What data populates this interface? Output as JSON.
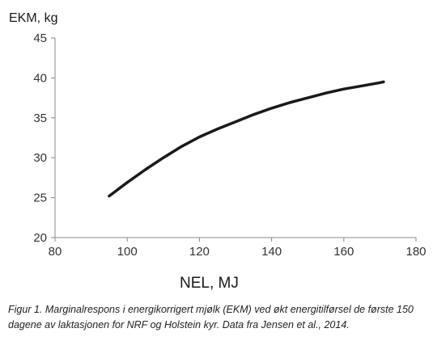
{
  "chart_data": {
    "type": "line",
    "ylabel": "EKM, kg",
    "xlabel": "NEL, MJ",
    "xlim": [
      80,
      180
    ],
    "ylim": [
      20,
      45
    ],
    "xticks": [
      80,
      100,
      120,
      140,
      160,
      180
    ],
    "yticks": [
      20,
      25,
      30,
      35,
      40,
      45
    ],
    "grid": false,
    "legend": "none",
    "line_color": "#1a1a1a",
    "series": [
      {
        "x": [
          95,
          100,
          105,
          110,
          115,
          120,
          125,
          130,
          135,
          140,
          145,
          150,
          155,
          160,
          165,
          170,
          171
        ],
        "y": [
          25.2,
          26.9,
          28.5,
          30.0,
          31.4,
          32.6,
          33.6,
          34.5,
          35.4,
          36.2,
          36.9,
          37.5,
          38.1,
          38.6,
          39.0,
          39.4,
          39.5
        ]
      }
    ]
  },
  "caption": "Figur 1. Marginalrespons i energikorrigert mjølk (EKM) ved økt energitilførsel de første 150 dagene av laktasjonen for NRF og Holstein kyr. Data fra Jensen et al., 2014."
}
